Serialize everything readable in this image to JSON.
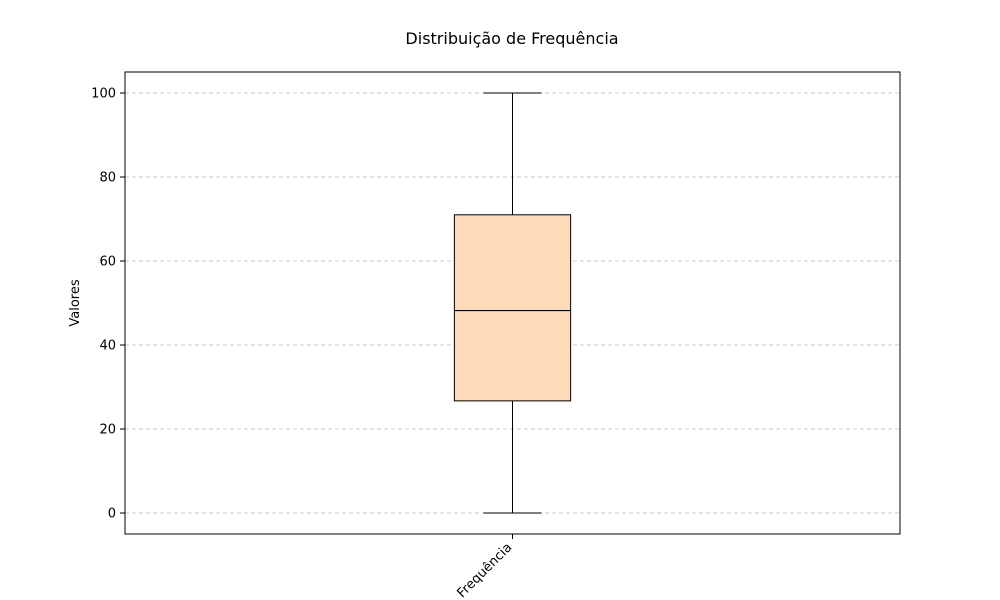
{
  "chart_data": {
    "type": "box",
    "title": "Distribuição de Frequência",
    "xlabel": "",
    "ylabel": "Valores",
    "categories": [
      "Frequência"
    ],
    "boxes": [
      {
        "category": "Frequência",
        "min": 0,
        "q1": 26.7,
        "median": 48.2,
        "q3": 71,
        "max": 100
      }
    ],
    "yticks": [
      0,
      20,
      40,
      60,
      80,
      100
    ],
    "ylim": [
      -5,
      105
    ],
    "grid": {
      "y": true,
      "style": "dashed"
    },
    "colors": {
      "box_fill": "#FDDBB9",
      "box_edge": "#000000",
      "grid": "#c8c8c8"
    }
  }
}
